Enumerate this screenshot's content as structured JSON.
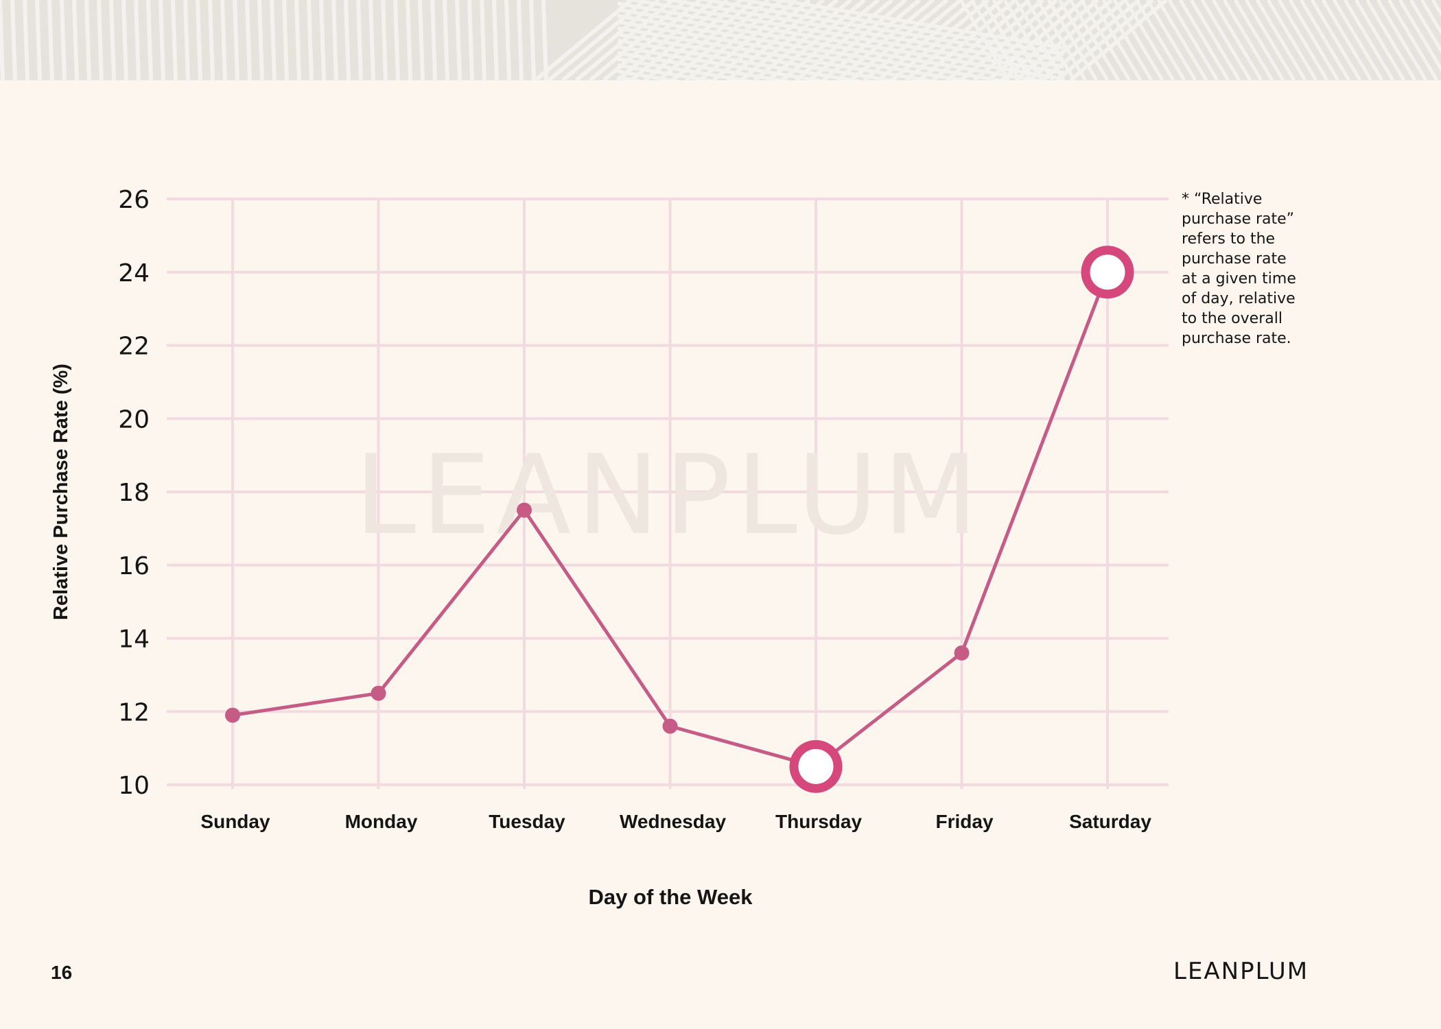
{
  "page": {
    "note": "* “Relative\n purchase rate”\n refers to the\n purchase rate\n at a given time\n of day, relative\n to the overall\n purchase rate.",
    "page_number": "16",
    "brand": "LEANPLUM",
    "watermark": "LEANPLUM"
  },
  "colors": {
    "background": "#fdf6ee",
    "line": "#c65b86",
    "marker": "#c65b86",
    "highlight": "#d6477c",
    "grid": "#f1dbe0",
    "banner": "#e6e2dc"
  },
  "chart_data": {
    "type": "line",
    "title": "",
    "xlabel": "Day of the Week",
    "ylabel": "Relative Purchase Rate (%)",
    "categories": [
      "Sunday",
      "Monday",
      "Tuesday",
      "Wednesday",
      "Thursday",
      "Friday",
      "Saturday"
    ],
    "series": [
      {
        "values": [
          11.9,
          12.5,
          17.5,
          11.6,
          10.5,
          13.6,
          24.0
        ]
      }
    ],
    "highlighted": [
      "Thursday",
      "Saturday"
    ],
    "ylim": [
      10,
      26
    ],
    "yticks": [
      10,
      12,
      14,
      16,
      18,
      20,
      22,
      24,
      26
    ],
    "grid": true,
    "legend": "none"
  }
}
